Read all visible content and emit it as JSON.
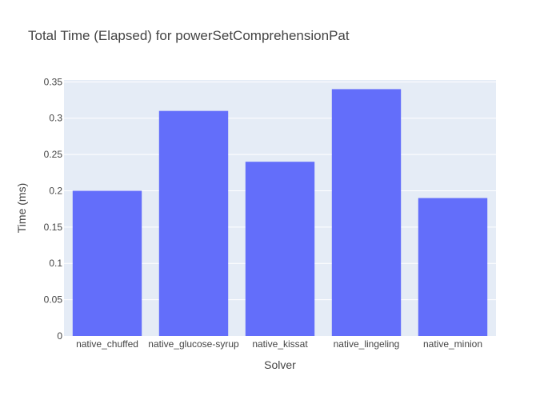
{
  "chart_data": {
    "type": "bar",
    "title": "Total Time (Elapsed) for powerSetComprehensionPat",
    "xlabel": "Solver",
    "ylabel": "Time (ms)",
    "categories": [
      "native_chuffed",
      "native_glucose-syrup",
      "native_kissat",
      "native_lingeling",
      "native_minion"
    ],
    "values": [
      0.2,
      0.31,
      0.24,
      0.34,
      0.19
    ],
    "ylim": [
      0,
      0.3526
    ],
    "yticks": [
      0,
      0.05,
      0.1,
      0.15,
      0.2,
      0.25,
      0.3,
      0.35
    ],
    "ytick_labels": [
      "0",
      "0.05",
      "0.1",
      "0.15",
      "0.2",
      "0.25",
      "0.3",
      "0.35"
    ],
    "grid": true,
    "legend": "none",
    "colors": {
      "bar": "#636efa",
      "plot_bg": "#e5ecf6",
      "grid": "#ffffff",
      "text": "#444444"
    }
  }
}
